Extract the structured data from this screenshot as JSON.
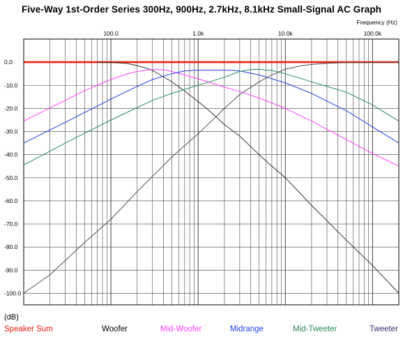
{
  "title": "Five-Way 1st-Order Series 300Hz, 900Hz, 2.7kHz, 8.1kHz Small-Signal AC Graph",
  "chart_data": {
    "type": "line",
    "title": "Five-Way 1st-Order Series 300Hz, 900Hz, 2.7kHz, 8.1kHz Small-Signal AC Graph",
    "xlabel": "Frequency  (Hz)",
    "ylabel": "(dB)",
    "xscale": "log",
    "xlim": [
      10,
      200000
    ],
    "ylim": [
      -105,
      10
    ],
    "grid": true,
    "x_ticks": [
      {
        "v": 100,
        "label": "100.0"
      },
      {
        "v": 1000,
        "label": "1.0k"
      },
      {
        "v": 10000,
        "label": "10.0k"
      },
      {
        "v": 100000,
        "label": "100.0k"
      }
    ],
    "y_ticks": [
      {
        "v": 0,
        "label": "0.0"
      },
      {
        "v": -10,
        "label": "-10.0"
      },
      {
        "v": -20,
        "label": "-20.0"
      },
      {
        "v": -30,
        "label": "-30.0"
      },
      {
        "v": -40,
        "label": "-40.0"
      },
      {
        "v": -50,
        "label": "-50.0"
      },
      {
        "v": -60,
        "label": "-60.0"
      },
      {
        "v": -70,
        "label": "-70.0"
      },
      {
        "v": -80,
        "label": "-80.0"
      },
      {
        "v": -90,
        "label": "-90.0"
      },
      {
        "v": -100,
        "label": "-100.0"
      }
    ],
    "legend_position": "bottom",
    "series": [
      {
        "name": "Speaker Sum",
        "color": "#e82010",
        "x": [
          10,
          200000
        ],
        "y": [
          0,
          0
        ]
      },
      {
        "name": "Woofer",
        "color": "#333333",
        "x": [
          70,
          100,
          150,
          200,
          250,
          300,
          400,
          500,
          700,
          1000,
          1500,
          2000,
          3000,
          5000,
          7000,
          10000,
          20000,
          50000,
          100000,
          200000
        ],
        "y": [
          0,
          -0.2,
          -0.5,
          -1.5,
          -2.5,
          -3.6,
          -6.3,
          -8.5,
          -12.5,
          -17,
          -22.6,
          -27,
          -32,
          -40,
          -45,
          -50,
          -62,
          -77,
          -88,
          -100
        ]
      },
      {
        "name": "Mid-Woofer",
        "color": "#ff40ff",
        "x": [
          10,
          30,
          50,
          100,
          150,
          200,
          300,
          400,
          500,
          700,
          1000,
          2000,
          3000,
          5000,
          10000,
          20000,
          50000,
          100000,
          200000
        ],
        "y": [
          -25.5,
          -16.5,
          -12.3,
          -7.5,
          -5.2,
          -4,
          -3.2,
          -3.3,
          -4,
          -5.5,
          -7.2,
          -10.8,
          -12.7,
          -15.5,
          -20,
          -25.5,
          -33.5,
          -39.5,
          -45
        ]
      },
      {
        "name": "Midrange",
        "color": "#2040e0",
        "x": [
          10,
          30,
          100,
          200,
          300,
          500,
          700,
          900,
          1500,
          2500,
          3000,
          5000,
          10000,
          20000,
          50000,
          100000,
          200000
        ],
        "y": [
          -35,
          -26,
          -16,
          -10.5,
          -7.5,
          -5,
          -3.8,
          -3.5,
          -3.5,
          -3.5,
          -3.8,
          -5.5,
          -9,
          -13.5,
          -21,
          -28,
          -35
        ]
      },
      {
        "name": "Mid-Tweeter",
        "color": "#2a8a5a",
        "x": [
          10,
          30,
          100,
          300,
          500,
          1000,
          2000,
          3000,
          4000,
          5000,
          7000,
          10000,
          20000,
          30000,
          50000,
          100000,
          200000
        ],
        "y": [
          -44.5,
          -35,
          -25,
          -16.5,
          -13.5,
          -10,
          -6.5,
          -4,
          -3.2,
          -3.1,
          -3.6,
          -5,
          -8.5,
          -10.5,
          -13,
          -18.5,
          -25.5
        ]
      },
      {
        "name": "Tweeter",
        "color": "#505050",
        "x": [
          10,
          20,
          50,
          100,
          200,
          500,
          1000,
          2000,
          3000,
          5000,
          7000,
          10000,
          15000,
          20000,
          30000,
          50000,
          200000
        ],
        "y": [
          -100,
          -92,
          -78,
          -68,
          -56,
          -41,
          -31,
          -20,
          -14,
          -8.5,
          -5.5,
          -3,
          -1.6,
          -1,
          -0.5,
          -0.2,
          0
        ]
      }
    ]
  },
  "legend": {
    "items": [
      {
        "label": "Speaker Sum",
        "color": "#e82010"
      },
      {
        "label": "Woofer",
        "color": "#000000"
      },
      {
        "label": "Mid-Woofer",
        "color": "#ff40ff"
      },
      {
        "label": "Midrange",
        "color": "#2040e0"
      },
      {
        "label": "Mid-Tweeter",
        "color": "#2a8a5a"
      },
      {
        "label": "Tweeter",
        "color": "#3a2a6a"
      }
    ]
  }
}
